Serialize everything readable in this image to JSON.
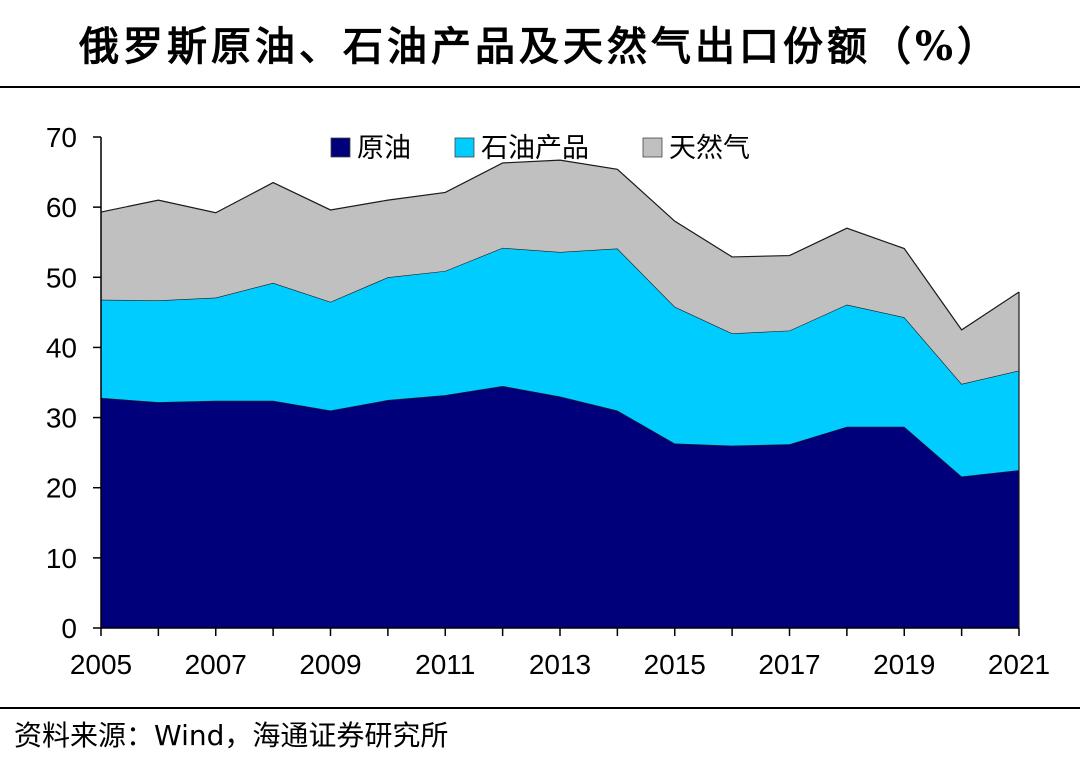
{
  "title": "俄罗斯原油、石油产品及天然气出口份额（%）",
  "source": "资料来源：Wind，海通证券研究所",
  "chart_data": {
    "type": "area",
    "stacked": true,
    "x": [
      2005,
      2006,
      2007,
      2008,
      2009,
      2010,
      2011,
      2012,
      2013,
      2014,
      2015,
      2016,
      2017,
      2018,
      2019,
      2020,
      2021
    ],
    "x_tick_labels": [
      "2005",
      "2007",
      "2009",
      "2011",
      "2013",
      "2015",
      "2017",
      "2019",
      "2021"
    ],
    "y_tick_labels": [
      "0",
      "10",
      "20",
      "30",
      "40",
      "50",
      "60",
      "70"
    ],
    "ylim": [
      0,
      70
    ],
    "legend_position": "top-center",
    "series": [
      {
        "name": "原油",
        "color": "#00007a",
        "values": [
          32.8,
          32.2,
          32.4,
          32.4,
          31.0,
          32.5,
          33.2,
          34.5,
          33.0,
          31.0,
          26.3,
          26.0,
          26.2,
          28.7,
          28.7,
          21.6,
          22.5
        ]
      },
      {
        "name": "石油产品",
        "color": "#00ccff",
        "values": [
          14.0,
          14.5,
          14.7,
          16.8,
          15.5,
          17.5,
          17.7,
          19.7,
          20.6,
          23.1,
          19.5,
          16.0,
          16.2,
          17.4,
          15.6,
          13.2,
          14.2
        ]
      },
      {
        "name": "天然气",
        "color": "#c0c0c0",
        "values": [
          12.5,
          14.3,
          12.1,
          14.3,
          13.1,
          11.0,
          11.2,
          12.1,
          13.1,
          11.3,
          12.2,
          10.9,
          10.7,
          10.9,
          9.8,
          7.7,
          11.2
        ]
      }
    ]
  }
}
